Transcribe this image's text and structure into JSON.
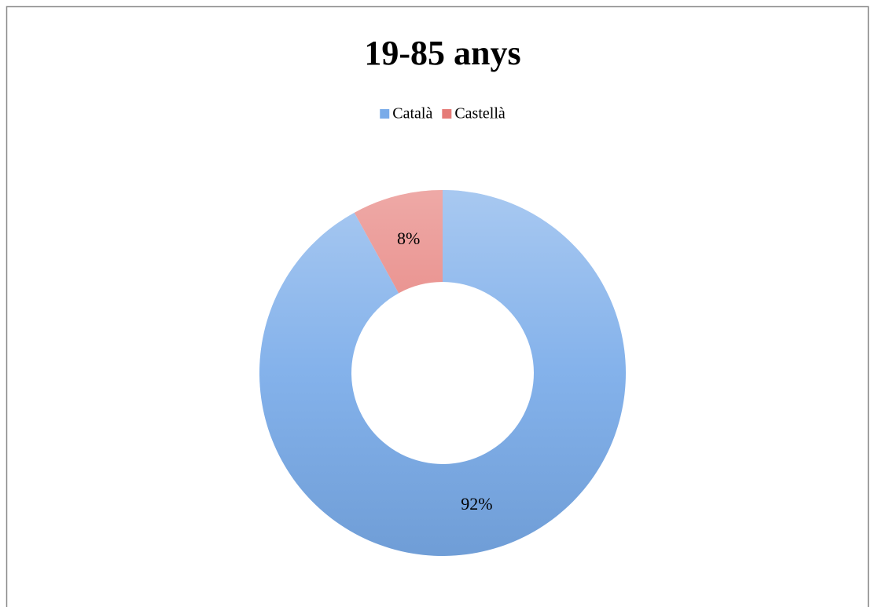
{
  "chart_data": {
    "type": "donut",
    "title": "19-85 anys",
    "categories": [
      "Català",
      "Castellà"
    ],
    "values": [
      92,
      8
    ],
    "value_labels": [
      "92%",
      "8%"
    ],
    "colors": [
      "#79abe9",
      "#e57b77"
    ],
    "legend": "top"
  }
}
